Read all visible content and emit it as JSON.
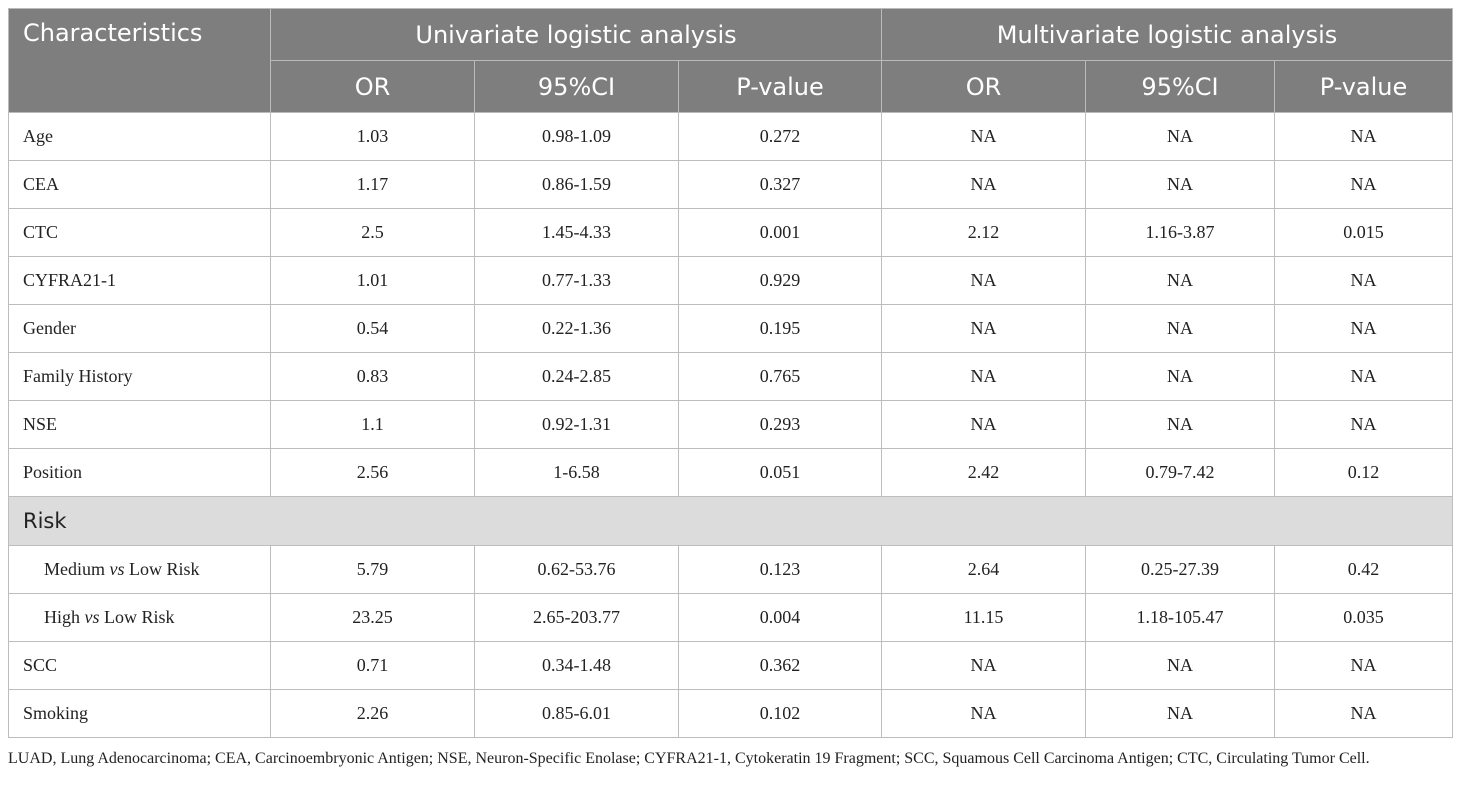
{
  "header": {
    "characteristics": "Characteristics",
    "univariate": "Univariate logistic analysis",
    "multivariate": "Multivariate logistic analysis",
    "sub": [
      "OR",
      "95%CI",
      "P-value",
      "OR",
      "95%CI",
      "P-value"
    ]
  },
  "rows": [
    {
      "label": "Age",
      "values": [
        "1.03",
        "0.98-1.09",
        "0.272",
        "NA",
        "NA",
        "NA"
      ]
    },
    {
      "label": "CEA",
      "values": [
        "1.17",
        "0.86-1.59",
        "0.327",
        "NA",
        "NA",
        "NA"
      ]
    },
    {
      "label": "CTC",
      "values": [
        "2.5",
        "1.45-4.33",
        "0.001",
        "2.12",
        "1.16-3.87",
        "0.015"
      ]
    },
    {
      "label": "CYFRA21-1",
      "values": [
        "1.01",
        "0.77-1.33",
        "0.929",
        "NA",
        "NA",
        "NA"
      ]
    },
    {
      "label": "Gender",
      "values": [
        "0.54",
        "0.22-1.36",
        "0.195",
        "NA",
        "NA",
        "NA"
      ]
    },
    {
      "label": "Family History",
      "values": [
        "0.83",
        "0.24-2.85",
        "0.765",
        "NA",
        "NA",
        "NA"
      ]
    },
    {
      "label": "NSE",
      "values": [
        "1.1",
        "0.92-1.31",
        "0.293",
        "NA",
        "NA",
        "NA"
      ]
    },
    {
      "label": "Position",
      "values": [
        "2.56",
        "1-6.58",
        "0.051",
        "2.42",
        "0.79-7.42",
        "0.12"
      ]
    }
  ],
  "group": {
    "label": "Risk",
    "rows": [
      {
        "label_a": "Medium ",
        "label_vs": "vs",
        "label_b": " Low Risk",
        "values": [
          "5.79",
          "0.62-53.76",
          "0.123",
          "2.64",
          "0.25-27.39",
          "0.42"
        ]
      },
      {
        "label_a": "High ",
        "label_vs": "vs",
        "label_b": " Low Risk",
        "values": [
          "23.25",
          "2.65-203.77",
          "0.004",
          "11.15",
          "1.18-105.47",
          "0.035"
        ]
      }
    ]
  },
  "rows_after": [
    {
      "label": "SCC",
      "values": [
        "0.71",
        "0.34-1.48",
        "0.362",
        "NA",
        "NA",
        "NA"
      ]
    },
    {
      "label": "Smoking",
      "values": [
        "2.26",
        "0.85-6.01",
        "0.102",
        "NA",
        "NA",
        "NA"
      ]
    }
  ],
  "footnote": "LUAD, Lung Adenocarcinoma; CEA, Carcinoembryonic Antigen; NSE, Neuron-Specific Enolase; CYFRA21-1, Cytokeratin 19 Fragment; SCC, Squamous Cell Carcinoma Antigen; CTC, Circulating Tumor Cell."
}
